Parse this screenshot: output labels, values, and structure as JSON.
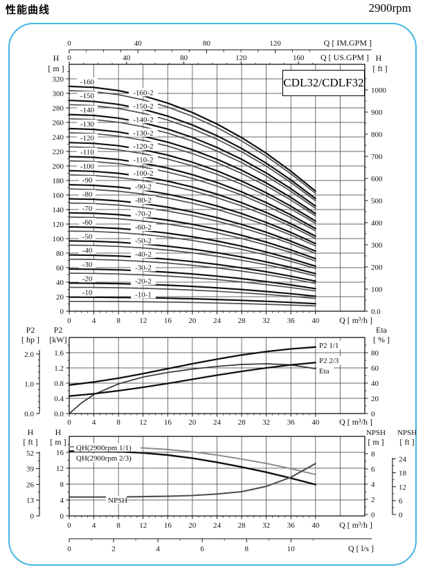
{
  "page": {
    "title": "性能曲线",
    "rpm": "2900rpm",
    "frame_color": "#45b5e5",
    "colors": {
      "main_curve": "#101010",
      "variant_curve": "#4d4d4d",
      "light_curve": "#8c8c8c",
      "mid_curve": "#333333"
    }
  },
  "chart_data": [
    {
      "id": "head-capacity",
      "type": "line",
      "model_box": "CDL32/CDLF32",
      "x_values_m3h": [
        0,
        4,
        8,
        12,
        16,
        20,
        24,
        28,
        32,
        36,
        40
      ],
      "per_stage_head_m": [
        19.35,
        19.26,
        18.99,
        18.54,
        17.91,
        17.1,
        16.11,
        14.94,
        13.59,
        12.05,
        10.34
      ],
      "stages": [
        {
          "label": "-10",
          "stages_mult": 1,
          "variant_label": "-10-1",
          "variant_mult": 0.7
        },
        {
          "label": "-20",
          "stages_mult": 2,
          "variant_label": "-20-2",
          "variant_mult": 1.7
        },
        {
          "label": "-30",
          "stages_mult": 3,
          "variant_label": "-30-2",
          "variant_mult": 2.7
        },
        {
          "label": "-40",
          "stages_mult": 4,
          "variant_label": "-40-2",
          "variant_mult": 3.7
        },
        {
          "label": "-50",
          "stages_mult": 5,
          "variant_label": "-50-2",
          "variant_mult": 4.7
        },
        {
          "label": "-60",
          "stages_mult": 6,
          "variant_label": "-60-2",
          "variant_mult": 5.7
        },
        {
          "label": "-70",
          "stages_mult": 7,
          "variant_label": "-70-2",
          "variant_mult": 6.7
        },
        {
          "label": "-80",
          "stages_mult": 8,
          "variant_label": "-80-2",
          "variant_mult": 7.7
        },
        {
          "label": "-90",
          "stages_mult": 9,
          "variant_label": "-90-2",
          "variant_mult": 8.7
        },
        {
          "label": "-100",
          "stages_mult": 10,
          "variant_label": "-100-2",
          "variant_mult": 9.7
        },
        {
          "label": "-110",
          "stages_mult": 11,
          "variant_label": "-110-2",
          "variant_mult": 10.7
        },
        {
          "label": "-120",
          "stages_mult": 12,
          "variant_label": "-120-2",
          "variant_mult": 11.7
        },
        {
          "label": "-130",
          "stages_mult": 13,
          "variant_label": "-130-2",
          "variant_mult": 12.7
        },
        {
          "label": "-140",
          "stages_mult": 14,
          "variant_label": "-140-2",
          "variant_mult": 13.7
        },
        {
          "label": "-150",
          "stages_mult": 15,
          "variant_label": "-150-2",
          "variant_mult": 14.7
        },
        {
          "label": "-160",
          "stages_mult": 16,
          "variant_label": "-160-2",
          "variant_mult": 15.7
        }
      ],
      "x_axis": {
        "unit": "Q [ m³/h ]",
        "tick_labels": [
          "0",
          "4",
          "8",
          "12",
          "16",
          "20",
          "24",
          "28",
          "32",
          "36",
          "40"
        ],
        "range": [
          0,
          48
        ]
      },
      "y_left": {
        "name": "H",
        "unit": "[ m ]",
        "tick_labels": [
          "0",
          "20",
          "40",
          "60",
          "80",
          "100",
          "120",
          "140",
          "160",
          "180",
          "200",
          "220",
          "240",
          "260",
          "280",
          "300",
          "320"
        ],
        "range": [
          0,
          340
        ]
      },
      "y_right": {
        "name": "H",
        "unit": "[ ft ]",
        "tick_labels": [
          "0.0",
          "100",
          "200",
          "300",
          "400",
          "500",
          "600",
          "700",
          "800",
          "900",
          "1000"
        ]
      },
      "top_scales": [
        {
          "unit": "Q [ IM.GPM ]",
          "tick_labels": [
            "0",
            "40",
            "80",
            "120"
          ]
        },
        {
          "unit": "Q [ US.GPM ]",
          "tick_labels": [
            "0",
            "40",
            "80",
            "120",
            "160"
          ]
        }
      ]
    },
    {
      "id": "power-efficiency",
      "type": "line",
      "series": [
        {
          "name": "P2 1/1",
          "y_axis": "kW",
          "points": [
            [
              0,
              0.75
            ],
            [
              4,
              0.83
            ],
            [
              8,
              0.93
            ],
            [
              12,
              1.05
            ],
            [
              16,
              1.18
            ],
            [
              20,
              1.31
            ],
            [
              24,
              1.43
            ],
            [
              28,
              1.54
            ],
            [
              32,
              1.63
            ],
            [
              36,
              1.7
            ],
            [
              40,
              1.75
            ]
          ]
        },
        {
          "name": "P2 2/3",
          "y_axis": "kW",
          "points": [
            [
              0,
              0.46
            ],
            [
              4,
              0.52
            ],
            [
              8,
              0.6
            ],
            [
              12,
              0.69
            ],
            [
              16,
              0.79
            ],
            [
              20,
              0.9
            ],
            [
              24,
              1.01
            ],
            [
              28,
              1.11
            ],
            [
              32,
              1.2
            ],
            [
              36,
              1.28
            ],
            [
              40,
              1.34
            ]
          ]
        },
        {
          "name": "Eta",
          "y_axis": "%",
          "points": [
            [
              0,
              0
            ],
            [
              2,
              14
            ],
            [
              4,
              25
            ],
            [
              8,
              39
            ],
            [
              12,
              48
            ],
            [
              16,
              54
            ],
            [
              20,
              58.5
            ],
            [
              24,
              62
            ],
            [
              28,
              64.5
            ],
            [
              32,
              65.5
            ],
            [
              36,
              64
            ],
            [
              40,
              59
            ]
          ]
        }
      ],
      "x_axis": {
        "unit": "Q [ m³/h ]",
        "tick_labels": [
          "0",
          "4",
          "8",
          "12",
          "16",
          "20",
          "24",
          "28",
          "32",
          "36",
          "40"
        ],
        "range": [
          0,
          48
        ]
      },
      "y_left_outer": {
        "name": "P2",
        "unit": "[ hp ]",
        "tick_labels": [
          "0.0",
          "1.0",
          "2.0"
        ]
      },
      "y_left_inner": {
        "name": "P2",
        "unit": "[kW]",
        "tick_labels": [
          "0.0",
          "0.4",
          "0.8",
          "1.2",
          "1.6"
        ],
        "range": [
          0,
          2
        ]
      },
      "y_right": {
        "name": "Eta",
        "unit": "[ % ]",
        "tick_labels": [
          "0",
          "20",
          "40",
          "60",
          "80"
        ],
        "range": [
          0,
          100
        ]
      }
    },
    {
      "id": "qh-npsh",
      "type": "line",
      "series": [
        {
          "name": "QH(2900rpm 1/1)",
          "y_axis": "m",
          "points": [
            [
              0,
              17.4
            ],
            [
              4,
              17.4
            ],
            [
              8,
              17.3
            ],
            [
              12,
              17.1
            ],
            [
              16,
              16.7
            ],
            [
              20,
              16.1
            ],
            [
              24,
              15.3
            ],
            [
              28,
              14.3
            ],
            [
              32,
              13.2
            ],
            [
              36,
              11.9
            ],
            [
              40,
              10.4
            ]
          ]
        },
        {
          "name": "QH(2900rpm 2/3)",
          "y_axis": "m",
          "points": [
            [
              0,
              16.3
            ],
            [
              4,
              16.3
            ],
            [
              8,
              16.15
            ],
            [
              12,
              15.85
            ],
            [
              16,
              15.3
            ],
            [
              20,
              14.5
            ],
            [
              24,
              13.5
            ],
            [
              28,
              12.3
            ],
            [
              32,
              11.0
            ],
            [
              36,
              9.5
            ],
            [
              40,
              7.9
            ]
          ]
        },
        {
          "name": "NPSH",
          "y_axis": "NPSH m",
          "points": [
            [
              0,
              2.3
            ],
            [
              4,
              2.3
            ],
            [
              8,
              2.3
            ],
            [
              12,
              2.35
            ],
            [
              16,
              2.4
            ],
            [
              20,
              2.5
            ],
            [
              24,
              2.7
            ],
            [
              28,
              3.0
            ],
            [
              32,
              3.7
            ],
            [
              36,
              4.9
            ],
            [
              40,
              6.7
            ]
          ]
        }
      ],
      "x_axis": {
        "unit": "Q [ m³/h ]",
        "tick_labels": [
          "0",
          "4",
          "8",
          "12",
          "16",
          "20",
          "24",
          "28",
          "32",
          "36",
          "40"
        ],
        "range": [
          0,
          48
        ]
      },
      "x_axis_ls": {
        "unit": "Q [ l/s ]",
        "tick_labels": [
          "0",
          "2",
          "4",
          "6",
          "8",
          "10"
        ]
      },
      "y_left_outer": {
        "name": "H",
        "unit": "[ ft ]",
        "tick_labels": [
          "0",
          "13",
          "26",
          "39",
          "52"
        ]
      },
      "y_left_inner": {
        "name": "H",
        "unit": "[ m ]",
        "tick_labels": [
          "0",
          "4",
          "8",
          "12",
          "16"
        ],
        "range": [
          0,
          20
        ]
      },
      "y_right_inner": {
        "name": "NPSH",
        "unit": "[ m ]",
        "tick_labels": [
          "0",
          "2",
          "4",
          "6",
          "8"
        ]
      },
      "y_right_outer": {
        "name": "NPSH",
        "unit": "[ ft ]",
        "tick_labels": [
          "0",
          "6",
          "12",
          "18",
          "24"
        ]
      }
    }
  ]
}
